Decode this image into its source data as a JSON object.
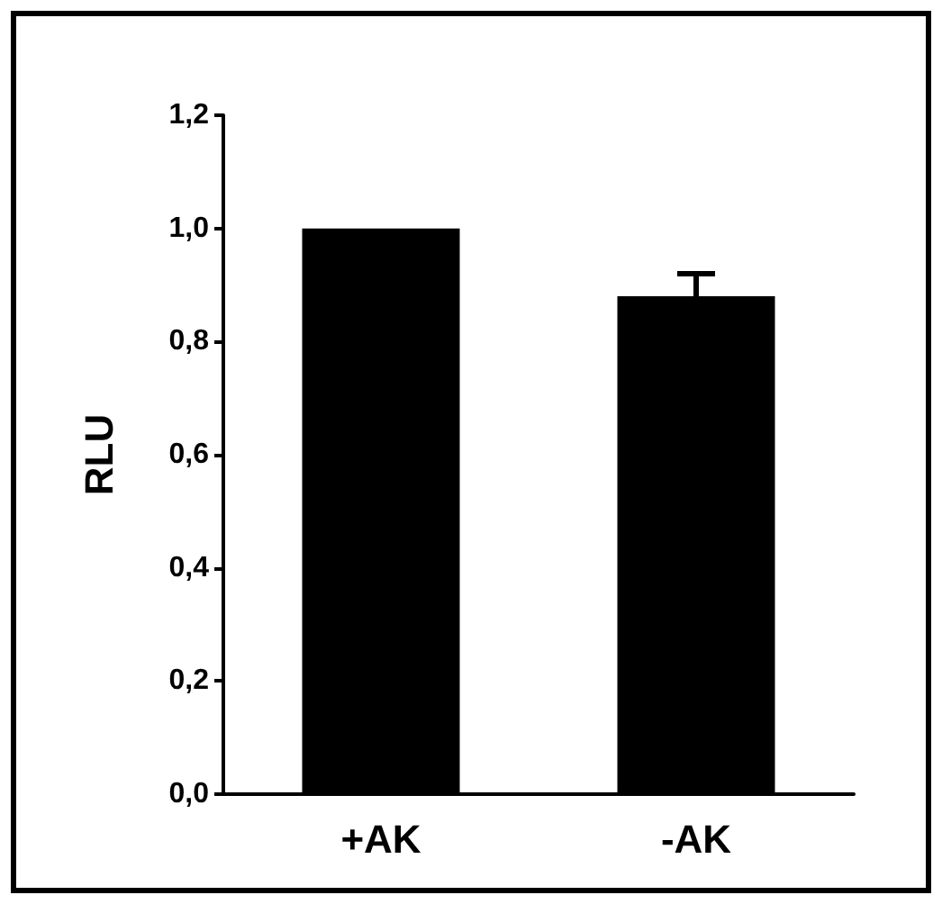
{
  "chart_data": {
    "type": "bar",
    "ylabel": "RLU",
    "categories": [
      "+AK",
      "-AK"
    ],
    "values": [
      1.0,
      0.88
    ],
    "errors": [
      null,
      0.04
    ],
    "color": "#000000",
    "ylim": [
      0,
      1.2
    ],
    "yticks": [
      {
        "value": 0,
        "label": "0,0"
      },
      {
        "value": 0.2,
        "label": "0,2"
      },
      {
        "value": 0.4,
        "label": "0,4"
      },
      {
        "value": 0.6,
        "label": "0,6"
      },
      {
        "value": 0.8,
        "label": "0,8"
      },
      {
        "value": 1.0,
        "label": "1,0"
      },
      {
        "value": 1.2,
        "label": "1,2"
      }
    ],
    "line_style": "solid"
  }
}
